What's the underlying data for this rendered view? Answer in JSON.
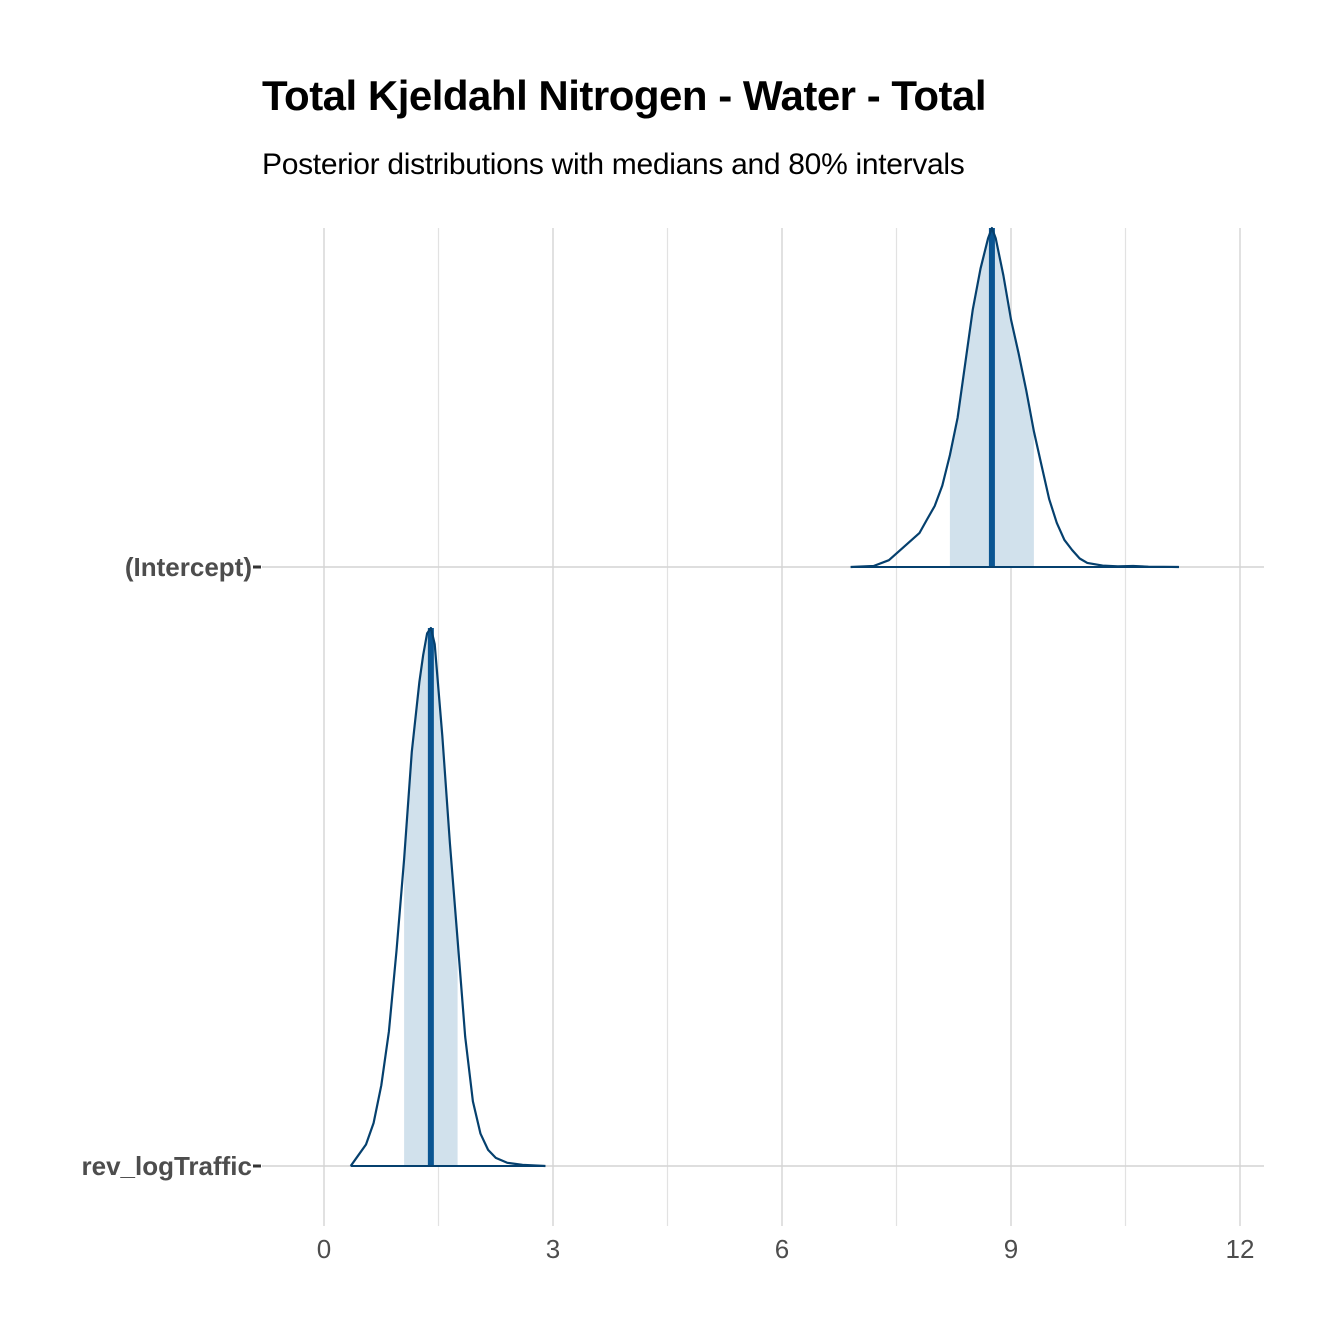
{
  "colors": {
    "accent": "#05406e",
    "median": "#0a5592",
    "interval_fill": "#d1e1ec",
    "grid": "#d4d4d4",
    "axis_text": "#4d4d4d"
  },
  "chart_data": {
    "type": "area",
    "title": "Total Kjeldahl Nitrogen - Water - Total",
    "subtitle": "Posterior distributions with medians and 80% intervals",
    "xlabel": "",
    "ylabel": "",
    "xlim": [
      -1.3,
      12.3
    ],
    "x_ticks": [
      0,
      3,
      6,
      9,
      12
    ],
    "grid": true,
    "legend": "none",
    "series": [
      {
        "name": "(Intercept)",
        "median": 8.75,
        "interval_80": [
          8.2,
          9.3
        ],
        "x": [
          6.9,
          7.2,
          7.4,
          7.6,
          7.8,
          7.9,
          8.0,
          8.1,
          8.2,
          8.3,
          8.4,
          8.5,
          8.6,
          8.7,
          8.75,
          8.8,
          8.9,
          9.0,
          9.1,
          9.2,
          9.3,
          9.4,
          9.5,
          9.6,
          9.7,
          9.8,
          9.9,
          10.0,
          10.2,
          10.4,
          10.6,
          10.8,
          11.0,
          11.2
        ],
        "density": [
          0.0,
          0.003,
          0.02,
          0.06,
          0.1,
          0.14,
          0.18,
          0.24,
          0.33,
          0.44,
          0.6,
          0.76,
          0.88,
          0.97,
          1.0,
          0.97,
          0.86,
          0.73,
          0.63,
          0.52,
          0.4,
          0.3,
          0.2,
          0.13,
          0.08,
          0.05,
          0.025,
          0.012,
          0.004,
          0.002,
          0.003,
          0.001,
          0.0005,
          0.0
        ]
      },
      {
        "name": "rev_logTraffic",
        "median": 1.4,
        "interval_80": [
          1.05,
          1.75
        ],
        "x": [
          0.35,
          0.45,
          0.55,
          0.65,
          0.75,
          0.85,
          0.95,
          1.05,
          1.15,
          1.25,
          1.3,
          1.35,
          1.4,
          1.45,
          1.55,
          1.65,
          1.75,
          1.85,
          1.95,
          2.05,
          2.15,
          2.25,
          2.4,
          2.6,
          2.9
        ],
        "density": [
          0.0,
          0.02,
          0.04,
          0.08,
          0.15,
          0.25,
          0.4,
          0.57,
          0.77,
          0.9,
          0.95,
          0.99,
          1.0,
          0.97,
          0.8,
          0.6,
          0.42,
          0.24,
          0.12,
          0.06,
          0.03,
          0.015,
          0.006,
          0.002,
          0.0
        ]
      }
    ]
  }
}
